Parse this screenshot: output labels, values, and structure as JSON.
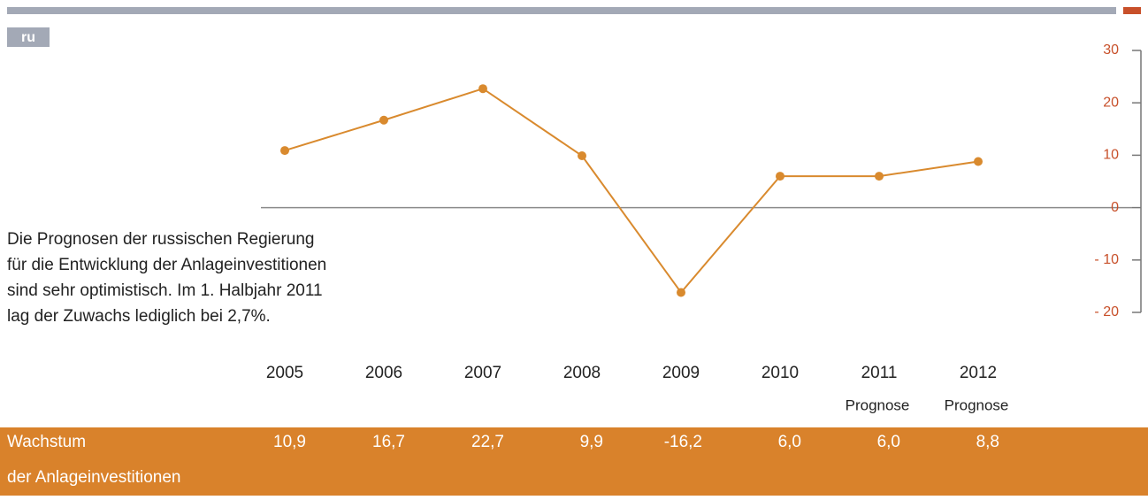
{
  "chart_data": {
    "type": "line",
    "tag": "ru",
    "note": [
      "Die Prognosen der russischen Regierung",
      "für die Entwicklung der Anlageinvestitionen",
      "sind sehr optimistisch. Im 1. Halbjahr 2011",
      "lag der Zuwachs lediglich bei 2,7%."
    ],
    "categories": [
      "2005",
      "2006",
      "2007",
      "2008",
      "2009",
      "2010",
      "2011",
      "2012"
    ],
    "category_notes": [
      null,
      null,
      null,
      null,
      null,
      null,
      "Prognose",
      "Prognose"
    ],
    "series": [
      {
        "name": "Wachstum der Anlageinvestitionen",
        "color": "#d98a2e",
        "values": [
          10.9,
          16.7,
          22.7,
          9.9,
          -16.2,
          6.0,
          6.0,
          8.8
        ],
        "value_labels": [
          "10,9",
          "16,7",
          "22,7",
          "9,9",
          "-16,2",
          "6,0",
          "6,0",
          "8,8"
        ]
      }
    ],
    "row_label": [
      "Wachstum",
      "der Anlageinvestitionen"
    ],
    "ylim": [
      -20,
      30
    ],
    "yticks": [
      30,
      20,
      10,
      0,
      {
        "value": -10,
        "label": "- 10"
      },
      {
        "value": -20,
        "label": "- 20"
      }
    ]
  }
}
